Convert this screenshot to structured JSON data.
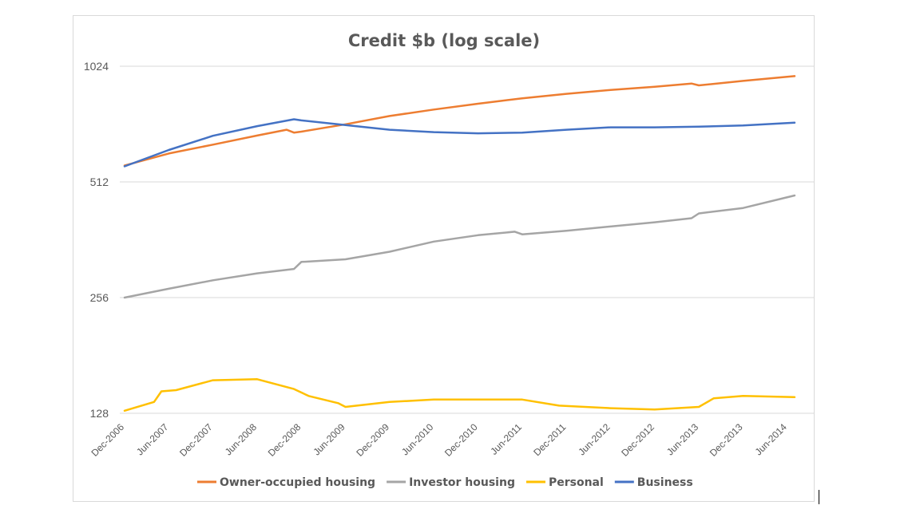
{
  "chart_data": {
    "type": "line",
    "title": "Credit $b (log scale)",
    "y_scale": "log2",
    "ylim": [
      128,
      1024
    ],
    "yticks": [
      128,
      256,
      512,
      1024
    ],
    "ytick_labels": [
      "128",
      "256",
      "512",
      "1024"
    ],
    "grid": true,
    "legend_position": "bottom",
    "x_tick_labels": [
      "Dec-2006",
      "Jun-2007",
      "Dec-2007",
      "Jun-2008",
      "Dec-2008",
      "Jun-2009",
      "Dec-2009",
      "Jun-2010",
      "Dec-2010",
      "Jun-2011",
      "Dec-2011",
      "Jun-2012",
      "Dec-2012",
      "Jun-2013",
      "Dec-2013",
      "Jun-2014"
    ],
    "x_start": "Dec-2006",
    "x_frequency": "monthly",
    "series": [
      {
        "name": "Owner-occupied housing",
        "color": "#ed7d31",
        "key_points": [
          [
            "Dec-2006",
            565
          ],
          [
            "Jun-2007",
            607
          ],
          [
            "Dec-2007",
            640
          ],
          [
            "Jun-2008",
            676
          ],
          [
            "Oct-2008",
            700
          ],
          [
            "Nov-2008",
            688
          ],
          [
            "Dec-2008",
            692
          ],
          [
            "Jun-2009",
            723
          ],
          [
            "Dec-2009",
            760
          ],
          [
            "Jun-2010",
            790
          ],
          [
            "Dec-2010",
            818
          ],
          [
            "Jun-2011",
            845
          ],
          [
            "Dec-2011",
            868
          ],
          [
            "Jun-2012",
            888
          ],
          [
            "Dec-2012",
            905
          ],
          [
            "May-2013",
            923
          ],
          [
            "Jun-2013",
            913
          ],
          [
            "Dec-2013",
            938
          ],
          [
            "Jul-2014",
            965
          ]
        ]
      },
      {
        "name": "Investor housing",
        "color": "#a5a5a5",
        "key_points": [
          [
            "Dec-2006",
            256
          ],
          [
            "Jun-2007",
            270
          ],
          [
            "Dec-2007",
            284
          ],
          [
            "Jun-2008",
            296
          ],
          [
            "Nov-2008",
            304
          ],
          [
            "Dec-2008",
            317
          ],
          [
            "Jun-2009",
            322
          ],
          [
            "Dec-2009",
            337
          ],
          [
            "Jun-2010",
            358
          ],
          [
            "Dec-2010",
            372
          ],
          [
            "May-2011",
            380
          ],
          [
            "Jun-2011",
            374
          ],
          [
            "Dec-2011",
            382
          ],
          [
            "Jun-2012",
            392
          ],
          [
            "Dec-2012",
            402
          ],
          [
            "May-2013",
            412
          ],
          [
            "Jun-2013",
            424
          ],
          [
            "Dec-2013",
            438
          ],
          [
            "Jul-2014",
            472
          ]
        ]
      },
      {
        "name": "Personal",
        "color": "#ffc000",
        "key_points": [
          [
            "Dec-2006",
            130
          ],
          [
            "Apr-2007",
            137
          ],
          [
            "May-2007",
            146
          ],
          [
            "Jul-2007",
            147
          ],
          [
            "Dec-2007",
            156
          ],
          [
            "Jun-2008",
            157
          ],
          [
            "Nov-2008",
            148
          ],
          [
            "Jan-2009",
            142
          ],
          [
            "May-2009",
            136
          ],
          [
            "Jun-2009",
            133
          ],
          [
            "Dec-2009",
            137
          ],
          [
            "Jun-2010",
            139
          ],
          [
            "Dec-2010",
            139
          ],
          [
            "Jun-2011",
            139
          ],
          [
            "Nov-2011",
            134
          ],
          [
            "Jun-2012",
            132
          ],
          [
            "Dec-2012",
            131
          ],
          [
            "Jun-2013",
            133
          ],
          [
            "Aug-2013",
            140
          ],
          [
            "Dec-2013",
            142
          ],
          [
            "Jul-2014",
            141
          ]
        ]
      },
      {
        "name": "Business",
        "color": "#4472c4",
        "key_points": [
          [
            "Dec-2006",
            562
          ],
          [
            "Jun-2007",
            620
          ],
          [
            "Dec-2007",
            675
          ],
          [
            "Jun-2008",
            715
          ],
          [
            "Nov-2008",
            745
          ],
          [
            "Dec-2008",
            740
          ],
          [
            "Jun-2009",
            720
          ],
          [
            "Dec-2009",
            700
          ],
          [
            "Jun-2010",
            690
          ],
          [
            "Dec-2010",
            685
          ],
          [
            "Jun-2011",
            688
          ],
          [
            "Dec-2011",
            700
          ],
          [
            "Jun-2012",
            710
          ],
          [
            "Dec-2012",
            710
          ],
          [
            "Jun-2013",
            713
          ],
          [
            "Dec-2013",
            718
          ],
          [
            "Jul-2014",
            730
          ]
        ]
      }
    ]
  }
}
